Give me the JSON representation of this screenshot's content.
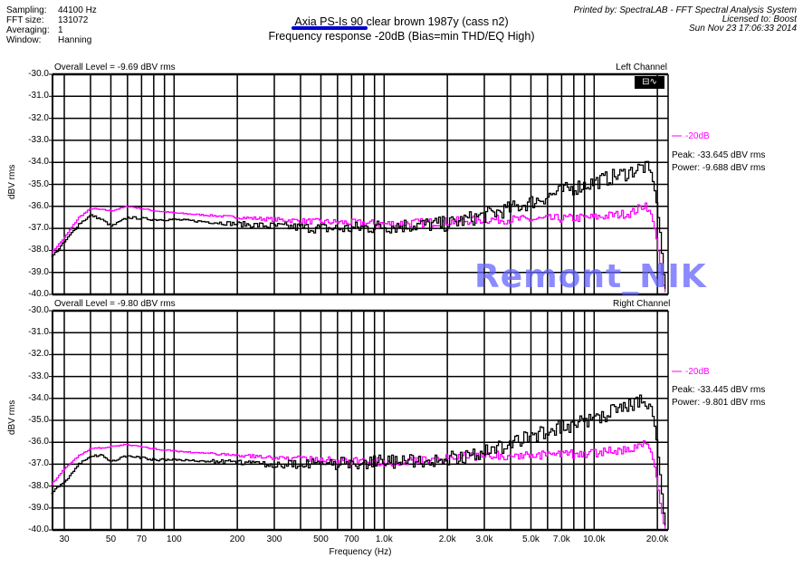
{
  "header": {
    "info": [
      {
        "label": "Sampling:",
        "value": "44100 Hz"
      },
      {
        "label": "FFT size:",
        "value": "131072"
      },
      {
        "label": "Averaging:",
        "value": "1"
      },
      {
        "label": "Window:",
        "value": "Hanning"
      }
    ],
    "title1": "Axia PS-Is 90 clear brown 1987y (cass n2)",
    "title2": "Frequency response -20dB (Bias=min THD/EQ High)",
    "printed_by": "Printed by: SpectraLAB - FFT Spectral Analysis System",
    "licensed_to": "Licensed to: Boost",
    "date": "Sun Nov 23 17:06:33 2014",
    "underline_color": "#0000cc"
  },
  "watermark": "Remont_NIK",
  "chart_data": [
    {
      "type": "line",
      "channel": "Left Channel",
      "overall_level": "Overall Level = -9.69 dBV rms",
      "ylabel": "dBV rms",
      "ylim": [
        -40,
        -30
      ],
      "yticks": [
        "-30.0",
        "-31.0",
        "-32.0",
        "-33.0",
        "-34.0",
        "-35.0",
        "-36.0",
        "-37.0",
        "-38.0",
        "-39.0",
        "-40.0"
      ],
      "legend": {
        "label": "-20dB",
        "peak": "Peak: -33.645 dBV rms",
        "power": "Power: -9.688 dBV rms"
      },
      "series": [
        {
          "name": "black",
          "color": "#000000",
          "ripple": 0.35,
          "points": [
            [
              26,
              -38.3
            ],
            [
              30,
              -37.6
            ],
            [
              35,
              -36.8
            ],
            [
              40,
              -36.4
            ],
            [
              45,
              -36.6
            ],
            [
              50,
              -36.9
            ],
            [
              60,
              -36.5
            ],
            [
              80,
              -36.6
            ],
            [
              100,
              -36.6
            ],
            [
              200,
              -36.8
            ],
            [
              300,
              -36.9
            ],
            [
              500,
              -37.0
            ],
            [
              700,
              -37.0
            ],
            [
              1000,
              -36.9
            ],
            [
              2000,
              -36.8
            ],
            [
              3000,
              -36.4
            ],
            [
              4000,
              -36.1
            ],
            [
              5000,
              -35.8
            ],
            [
              7000,
              -35.3
            ],
            [
              10000,
              -34.9
            ],
            [
              14000,
              -34.5
            ],
            [
              17000,
              -34.2
            ],
            [
              18500,
              -34.4
            ],
            [
              19500,
              -35.5
            ],
            [
              20500,
              -37.2
            ],
            [
              21500,
              -39.5
            ],
            [
              22000,
              -40.0
            ]
          ]
        },
        {
          "name": "magenta",
          "color": "#ff00ff",
          "ripple": 0.2,
          "points": [
            [
              26,
              -38.1
            ],
            [
              30,
              -37.4
            ],
            [
              35,
              -36.5
            ],
            [
              40,
              -36.1
            ],
            [
              50,
              -36.2
            ],
            [
              60,
              -36.0
            ],
            [
              80,
              -36.2
            ],
            [
              100,
              -36.3
            ],
            [
              200,
              -36.5
            ],
            [
              300,
              -36.6
            ],
            [
              500,
              -36.7
            ],
            [
              1000,
              -36.8
            ],
            [
              2000,
              -36.7
            ],
            [
              3000,
              -36.6
            ],
            [
              5000,
              -36.6
            ],
            [
              10000,
              -36.5
            ],
            [
              15000,
              -36.3
            ],
            [
              17500,
              -35.9
            ],
            [
              18500,
              -36.3
            ],
            [
              19500,
              -37.2
            ],
            [
              20500,
              -38.6
            ],
            [
              21500,
              -39.8
            ],
            [
              22000,
              -40.0
            ]
          ]
        }
      ]
    },
    {
      "type": "line",
      "channel": "Right Channel",
      "overall_level": "Overall Level = -9.80 dBV rms",
      "ylabel": "dBV rms",
      "ylim": [
        -40,
        -30
      ],
      "yticks": [
        "-30.0",
        "-31.0",
        "-32.0",
        "-33.0",
        "-34.0",
        "-35.0",
        "-36.0",
        "-37.0",
        "-38.0",
        "-39.0",
        "-40.0"
      ],
      "legend": {
        "label": "-20dB",
        "peak": "Peak: -33.445 dBV rms",
        "power": "Power: -9.801 dBV rms"
      },
      "series": [
        {
          "name": "black",
          "color": "#000000",
          "ripple": 0.35,
          "points": [
            [
              26,
              -38.3
            ],
            [
              30,
              -37.8
            ],
            [
              35,
              -37.0
            ],
            [
              40,
              -36.6
            ],
            [
              45,
              -36.6
            ],
            [
              50,
              -36.9
            ],
            [
              60,
              -36.6
            ],
            [
              80,
              -36.8
            ],
            [
              100,
              -36.8
            ],
            [
              200,
              -36.9
            ],
            [
              300,
              -37.0
            ],
            [
              500,
              -37.0
            ],
            [
              1000,
              -36.9
            ],
            [
              2000,
              -36.8
            ],
            [
              3000,
              -36.4
            ],
            [
              4000,
              -36.1
            ],
            [
              5000,
              -35.7
            ],
            [
              7000,
              -35.3
            ],
            [
              10000,
              -34.9
            ],
            [
              14000,
              -34.4
            ],
            [
              17000,
              -34.1
            ],
            [
              18500,
              -34.3
            ],
            [
              19500,
              -35.5
            ],
            [
              20500,
              -37.5
            ],
            [
              21500,
              -39.6
            ],
            [
              22000,
              -40.0
            ]
          ]
        },
        {
          "name": "magenta",
          "color": "#ff00ff",
          "ripple": 0.2,
          "points": [
            [
              26,
              -37.9
            ],
            [
              30,
              -37.2
            ],
            [
              35,
              -36.6
            ],
            [
              40,
              -36.3
            ],
            [
              50,
              -36.2
            ],
            [
              60,
              -36.1
            ],
            [
              80,
              -36.3
            ],
            [
              100,
              -36.4
            ],
            [
              200,
              -36.6
            ],
            [
              300,
              -36.7
            ],
            [
              500,
              -36.8
            ],
            [
              1000,
              -36.9
            ],
            [
              2000,
              -36.7
            ],
            [
              3000,
              -36.6
            ],
            [
              5000,
              -36.6
            ],
            [
              10000,
              -36.5
            ],
            [
              15000,
              -36.3
            ],
            [
              17500,
              -36.0
            ],
            [
              18500,
              -36.4
            ],
            [
              19500,
              -37.3
            ],
            [
              20500,
              -38.8
            ],
            [
              21500,
              -39.9
            ],
            [
              22000,
              -40.0
            ]
          ]
        }
      ]
    }
  ],
  "x_axis": {
    "label": "Frequency (Hz)",
    "ticks": [
      [
        30,
        "30"
      ],
      [
        50,
        "50"
      ],
      [
        70,
        "70"
      ],
      [
        100,
        "100"
      ],
      [
        200,
        "200"
      ],
      [
        300,
        "300"
      ],
      [
        500,
        "500"
      ],
      [
        700,
        "700"
      ],
      [
        1000,
        "1.0k"
      ],
      [
        2000,
        "2.0k"
      ],
      [
        3000,
        "3.0k"
      ],
      [
        5000,
        "5.0k"
      ],
      [
        7000,
        "7.0k"
      ],
      [
        10000,
        "10.0k"
      ],
      [
        20000,
        "20.0k"
      ]
    ],
    "gridlines": [
      30,
      40,
      50,
      60,
      70,
      80,
      90,
      100,
      200,
      300,
      400,
      500,
      600,
      700,
      800,
      900,
      1000,
      2000,
      3000,
      4000,
      5000,
      6000,
      7000,
      8000,
      9000,
      10000,
      20000
    ]
  }
}
